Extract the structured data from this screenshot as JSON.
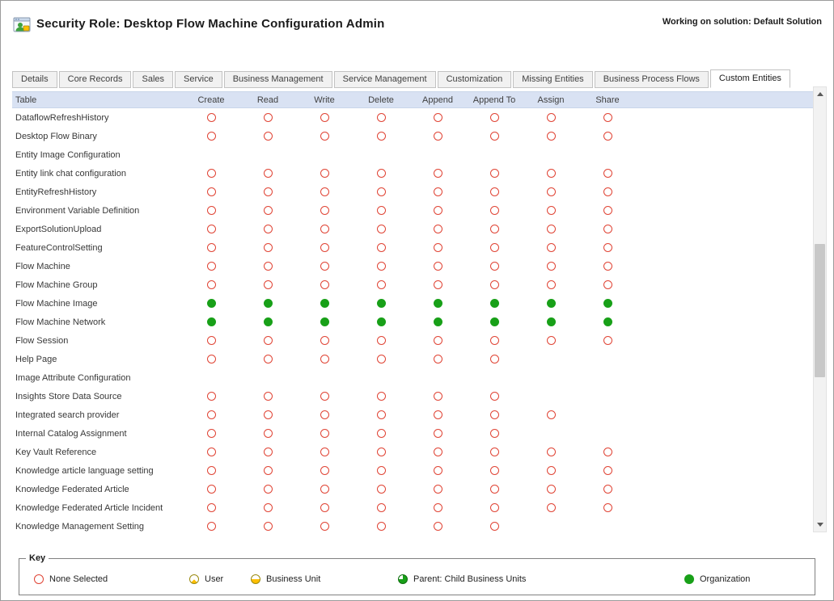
{
  "header": {
    "title": "Security Role: Desktop Flow Machine Configuration Admin",
    "solution_label": "Working on solution: Default Solution",
    "icon": "security-role-icon"
  },
  "tabs": [
    {
      "label": "Details",
      "active": false
    },
    {
      "label": "Core Records",
      "active": false
    },
    {
      "label": "Sales",
      "active": false
    },
    {
      "label": "Service",
      "active": false
    },
    {
      "label": "Business Management",
      "active": false
    },
    {
      "label": "Service Management",
      "active": false
    },
    {
      "label": "Customization",
      "active": false
    },
    {
      "label": "Missing Entities",
      "active": false
    },
    {
      "label": "Business Process Flows",
      "active": false
    },
    {
      "label": "Custom Entities",
      "active": true
    }
  ],
  "grid": {
    "columns": [
      "Table",
      "Create",
      "Read",
      "Write",
      "Delete",
      "Append",
      "Append To",
      "Assign",
      "Share"
    ],
    "privilege_levels": {
      "none": "None Selected (red outline circle)",
      "org": "Organization (solid green circle)",
      "blank": "privilege not available"
    },
    "rows": [
      {
        "name": "DataflowRefreshHistory",
        "privileges": [
          "none",
          "none",
          "none",
          "none",
          "none",
          "none",
          "none",
          "none"
        ]
      },
      {
        "name": "Desktop Flow Binary",
        "privileges": [
          "none",
          "none",
          "none",
          "none",
          "none",
          "none",
          "none",
          "none"
        ]
      },
      {
        "name": "Entity Image Configuration",
        "privileges": [
          "blank",
          "blank",
          "blank",
          "blank",
          "blank",
          "blank",
          "blank",
          "blank"
        ]
      },
      {
        "name": "Entity link chat configuration",
        "privileges": [
          "none",
          "none",
          "none",
          "none",
          "none",
          "none",
          "none",
          "none"
        ]
      },
      {
        "name": "EntityRefreshHistory",
        "privileges": [
          "none",
          "none",
          "none",
          "none",
          "none",
          "none",
          "none",
          "none"
        ]
      },
      {
        "name": "Environment Variable Definition",
        "privileges": [
          "none",
          "none",
          "none",
          "none",
          "none",
          "none",
          "none",
          "none"
        ]
      },
      {
        "name": "ExportSolutionUpload",
        "privileges": [
          "none",
          "none",
          "none",
          "none",
          "none",
          "none",
          "none",
          "none"
        ]
      },
      {
        "name": "FeatureControlSetting",
        "privileges": [
          "none",
          "none",
          "none",
          "none",
          "none",
          "none",
          "none",
          "none"
        ]
      },
      {
        "name": "Flow Machine",
        "privileges": [
          "none",
          "none",
          "none",
          "none",
          "none",
          "none",
          "none",
          "none"
        ]
      },
      {
        "name": "Flow Machine Group",
        "privileges": [
          "none",
          "none",
          "none",
          "none",
          "none",
          "none",
          "none",
          "none"
        ]
      },
      {
        "name": "Flow Machine Image",
        "privileges": [
          "org",
          "org",
          "org",
          "org",
          "org",
          "org",
          "org",
          "org"
        ]
      },
      {
        "name": "Flow Machine Network",
        "privileges": [
          "org",
          "org",
          "org",
          "org",
          "org",
          "org",
          "org",
          "org"
        ]
      },
      {
        "name": "Flow Session",
        "privileges": [
          "none",
          "none",
          "none",
          "none",
          "none",
          "none",
          "none",
          "none"
        ]
      },
      {
        "name": "Help Page",
        "privileges": [
          "none",
          "none",
          "none",
          "none",
          "none",
          "none",
          "blank",
          "blank"
        ]
      },
      {
        "name": "Image Attribute Configuration",
        "privileges": [
          "blank",
          "blank",
          "blank",
          "blank",
          "blank",
          "blank",
          "blank",
          "blank"
        ]
      },
      {
        "name": "Insights Store Data Source",
        "privileges": [
          "none",
          "none",
          "none",
          "none",
          "none",
          "none",
          "blank",
          "blank"
        ]
      },
      {
        "name": "Integrated search provider",
        "privileges": [
          "none",
          "none",
          "none",
          "none",
          "none",
          "none",
          "none",
          "blank"
        ]
      },
      {
        "name": "Internal Catalog Assignment",
        "privileges": [
          "none",
          "none",
          "none",
          "none",
          "none",
          "none",
          "blank",
          "blank"
        ]
      },
      {
        "name": "Key Vault Reference",
        "privileges": [
          "none",
          "none",
          "none",
          "none",
          "none",
          "none",
          "none",
          "none"
        ]
      },
      {
        "name": "Knowledge article language setting",
        "privileges": [
          "none",
          "none",
          "none",
          "none",
          "none",
          "none",
          "none",
          "none"
        ]
      },
      {
        "name": "Knowledge Federated Article",
        "privileges": [
          "none",
          "none",
          "none",
          "none",
          "none",
          "none",
          "none",
          "none"
        ]
      },
      {
        "name": "Knowledge Federated Article Incident",
        "privileges": [
          "none",
          "none",
          "none",
          "none",
          "none",
          "none",
          "none",
          "none"
        ]
      },
      {
        "name": "Knowledge Management Setting",
        "privileges": [
          "none",
          "none",
          "none",
          "none",
          "none",
          "none",
          "blank",
          "blank"
        ]
      }
    ]
  },
  "legend": {
    "title": "Key",
    "items": [
      {
        "label": "None Selected",
        "level": "none"
      },
      {
        "label": "User",
        "level": "user"
      },
      {
        "label": "Business Unit",
        "level": "business-unit"
      },
      {
        "label": "Parent: Child Business Units",
        "level": "parent-child"
      },
      {
        "label": "Organization",
        "level": "organization"
      }
    ]
  },
  "colors": {
    "none_selected": "#e04334",
    "organization": "#18a018",
    "user_business_unit": "#ffbf00",
    "grid_header_bg": "#d9e2f3",
    "tab_bg": "#f1f1f1"
  }
}
